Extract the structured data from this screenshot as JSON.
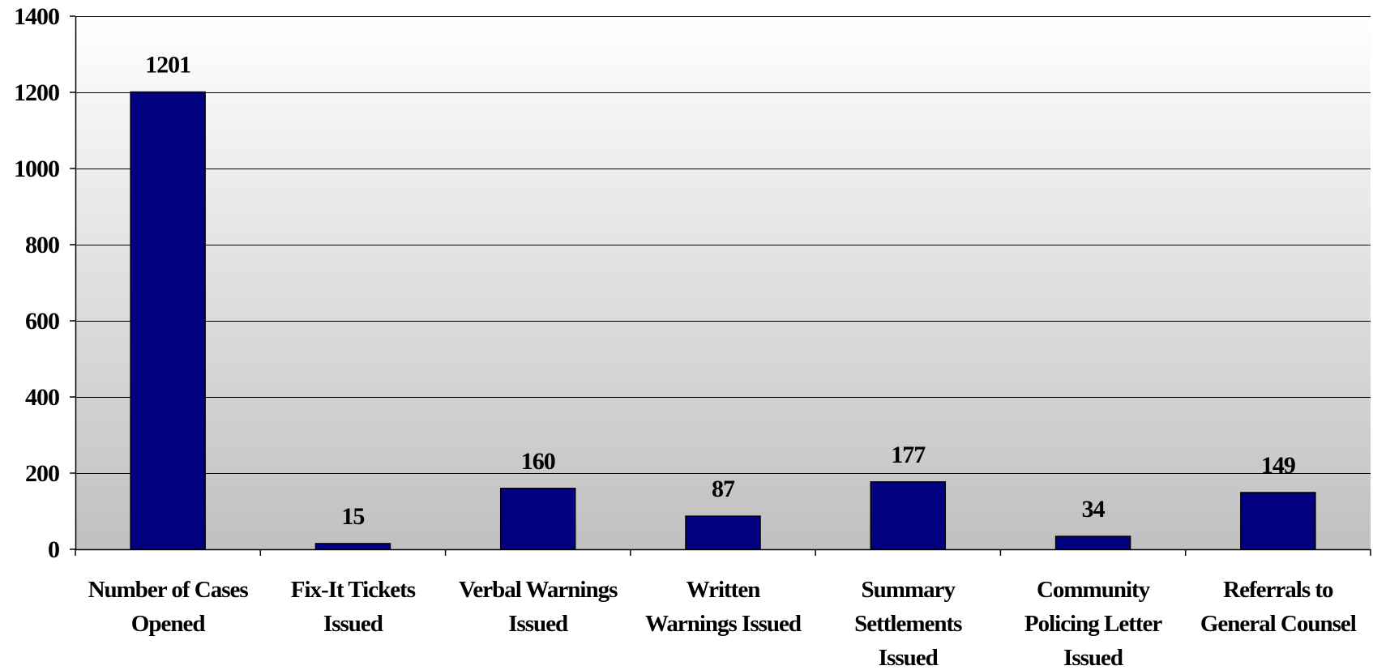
{
  "chart_data": {
    "type": "bar",
    "categories": [
      [
        "Number of Cases",
        "Opened"
      ],
      [
        "Fix-It Tickets",
        "Issued"
      ],
      [
        "Verbal Warnings",
        "Issued"
      ],
      [
        "Written",
        "Warnings Issued"
      ],
      [
        "Summary",
        "Settlements",
        "Issued"
      ],
      [
        "Community",
        "Policing Letter",
        "Issued"
      ],
      [
        "Referrals to",
        "General Counsel"
      ]
    ],
    "values": [
      1201,
      15,
      160,
      87,
      177,
      34,
      149
    ],
    "data_labels": [
      "1201",
      "15",
      "160",
      "87",
      "177",
      "34",
      "149"
    ],
    "title": "",
    "xlabel": "",
    "ylabel": "",
    "ylim": [
      0,
      1400
    ],
    "yticks": [
      0,
      200,
      400,
      600,
      800,
      1000,
      1200,
      1400
    ],
    "grid": true,
    "legend": "none",
    "colors": {
      "bar_fill": "#000080",
      "bar_stroke": "#000000",
      "plot_bg_top": "#ffffff",
      "plot_bg_bottom": "#c0c0c0",
      "gridline": "#000000",
      "axis": "#000000"
    }
  }
}
